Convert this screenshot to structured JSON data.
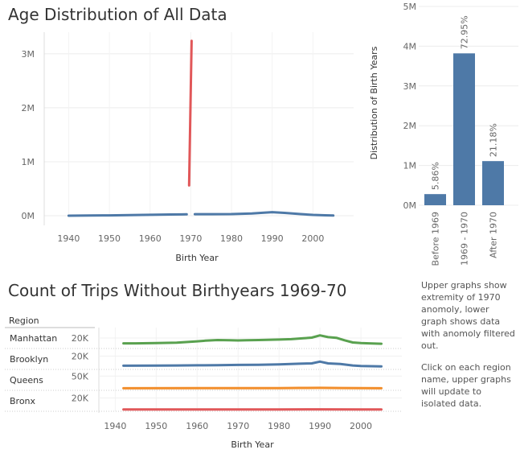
{
  "top_chart": {
    "title": "Age Distribution of All Data"
  },
  "bar_chart": {
    "y_title": "Distribution of Birth Years"
  },
  "bottom_chart": {
    "title": "Count of Trips Without Birthyears 1969-70",
    "region_header": "Region"
  },
  "notes": {
    "p1": "Upper graphs show extremity of 1970 anomoly, lower graph shows data with anomoly filtered out.",
    "p2": "Click on each region name, upper graphs will update to isolated data."
  },
  "colors": {
    "blue": "#4e79a7",
    "red": "#e15759",
    "green": "#59a14f",
    "orange": "#f28e2b",
    "grid": "#ececec"
  },
  "chart_data": [
    {
      "type": "line",
      "title": "Age Distribution of All Data",
      "xlabel": "Birth Year",
      "ylabel": "",
      "xlim": [
        1934,
        2010
      ],
      "ylim": [
        0,
        3400000
      ],
      "xticks": [
        1940,
        1950,
        1960,
        1970,
        1980,
        1990,
        2000
      ],
      "yticks": [
        {
          "v": 0,
          "label": "0M"
        },
        {
          "v": 1000000,
          "label": "1M"
        },
        {
          "v": 2000000,
          "label": "2M"
        },
        {
          "v": 3000000,
          "label": "3M"
        }
      ],
      "series": [
        {
          "color": "#4e79a7",
          "points": [
            [
              1940,
              0
            ],
            [
              1945,
              3000
            ],
            [
              1950,
              6000
            ],
            [
              1955,
              10000
            ],
            [
              1960,
              16000
            ],
            [
              1965,
              22000
            ],
            [
              1968,
              24000
            ],
            [
              1969,
              26000
            ]
          ]
        },
        {
          "color": "#e15759",
          "points": [
            [
              1969.6,
              560000
            ],
            [
              1970.2,
              3240000
            ]
          ]
        },
        {
          "color": "#4e79a7",
          "points": [
            [
              1971,
              28000
            ],
            [
              1975,
              28000
            ],
            [
              1980,
              30000
            ],
            [
              1985,
              40000
            ],
            [
              1988,
              55000
            ],
            [
              1990,
              65000
            ],
            [
              1993,
              52000
            ],
            [
              1997,
              30000
            ],
            [
              2000,
              15000
            ],
            [
              2003,
              8000
            ],
            [
              2005,
              3000
            ]
          ]
        }
      ]
    },
    {
      "type": "bar",
      "ylabel": "Distribution of Birth Years",
      "categories": [
        "Before 1969",
        "1969 - 1970",
        "After 1970"
      ],
      "values": [
        280000,
        3820000,
        1110000
      ],
      "labels": [
        "5.86%",
        "72.95%",
        "21.18%"
      ],
      "ylim": [
        0,
        5000000
      ],
      "yticks": [
        {
          "v": 0,
          "label": "0M"
        },
        {
          "v": 1000000,
          "label": "1M"
        },
        {
          "v": 2000000,
          "label": "2M"
        },
        {
          "v": 3000000,
          "label": "3M"
        },
        {
          "v": 4000000,
          "label": "4M"
        },
        {
          "v": 5000000,
          "label": "5M"
        }
      ]
    },
    {
      "type": "line",
      "title": "Count of Trips Without Birthyears 1969-70",
      "xlabel": "Birth Year",
      "xlim": [
        1936,
        2010
      ],
      "xticks": [
        1940,
        1950,
        1960,
        1970,
        1980,
        1990,
        2000
      ],
      "rows": [
        {
          "region": "Manhattan",
          "tick": "20K",
          "tick_value": 20000,
          "ymax": 40000,
          "color": "#59a14f",
          "points": [
            [
              1942,
              8000
            ],
            [
              1945,
              8000
            ],
            [
              1950,
              8500
            ],
            [
              1955,
              9500
            ],
            [
              1960,
              12500
            ],
            [
              1962,
              14000
            ],
            [
              1965,
              15500
            ],
            [
              1968,
              15000
            ],
            [
              1970,
              14500
            ],
            [
              1972,
              15000
            ],
            [
              1975,
              15500
            ],
            [
              1980,
              16500
            ],
            [
              1983,
              17500
            ],
            [
              1986,
              19500
            ],
            [
              1988,
              21000
            ],
            [
              1990,
              26000
            ],
            [
              1992,
              22000
            ],
            [
              1994,
              20500
            ],
            [
              1996,
              15000
            ],
            [
              1998,
              10000
            ],
            [
              2000,
              8500
            ],
            [
              2002,
              8000
            ],
            [
              2005,
              7000
            ]
          ]
        },
        {
          "region": "Brooklyn",
          "tick": "20K",
          "tick_value": 20000,
          "ymax": 30000,
          "color": "#4e79a7",
          "points": [
            [
              1942,
              3500
            ],
            [
              1950,
              3700
            ],
            [
              1955,
              4000
            ],
            [
              1960,
              4200
            ],
            [
              1965,
              4500
            ],
            [
              1970,
              4900
            ],
            [
              1975,
              5200
            ],
            [
              1980,
              5700
            ],
            [
              1985,
              7000
            ],
            [
              1988,
              7500
            ],
            [
              1990,
              10500
            ],
            [
              1992,
              7500
            ],
            [
              1995,
              6500
            ],
            [
              1998,
              4000
            ],
            [
              2000,
              3000
            ],
            [
              2005,
              2500
            ]
          ]
        },
        {
          "region": "Queens",
          "tick": "50K",
          "tick_value": 50000,
          "ymax": 70000,
          "color": "#f28e2b",
          "points": [
            [
              1942,
              2000
            ],
            [
              1960,
              2200
            ],
            [
              1970,
              2400
            ],
            [
              1980,
              2600
            ],
            [
              1985,
              3100
            ],
            [
              1990,
              3500
            ],
            [
              1995,
              2800
            ],
            [
              2000,
              2200
            ],
            [
              2005,
              2000
            ]
          ]
        },
        {
          "region": "Bronx",
          "tick": "20K",
          "tick_value": 20000,
          "ymax": 30000,
          "color": "#e15759",
          "points": [
            [
              1942,
              300
            ],
            [
              1960,
              350
            ],
            [
              1970,
              400
            ],
            [
              1980,
              450
            ],
            [
              1990,
              500
            ],
            [
              2000,
              400
            ],
            [
              2005,
              350
            ]
          ]
        }
      ]
    }
  ]
}
